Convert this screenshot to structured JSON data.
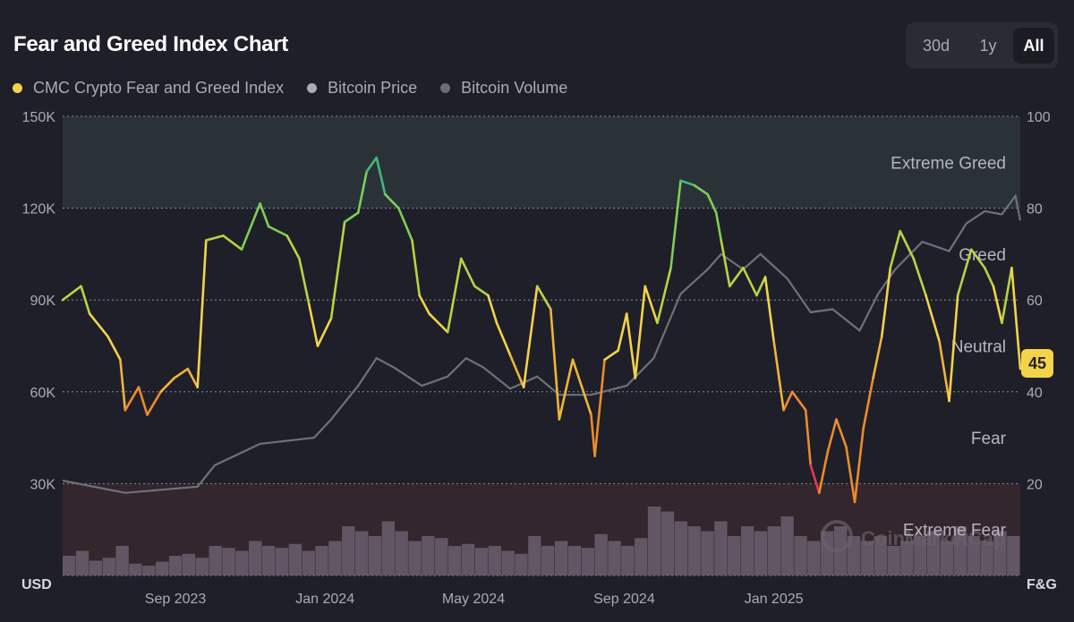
{
  "header": {
    "title": "Fear and Greed Index Chart"
  },
  "range_buttons": [
    {
      "label": "30d"
    },
    {
      "label": "1y"
    },
    {
      "label": "All",
      "active": true
    }
  ],
  "legend": [
    {
      "label": "CMC Crypto Fear and Greed Index",
      "color": "#f3d34a"
    },
    {
      "label": "Bitcoin Price",
      "color": "#a9abb5"
    },
    {
      "label": "Bitcoin Volume",
      "color": "#6b6c76"
    }
  ],
  "current_value": "45",
  "watermark": "CoinMarketCap",
  "chart_data": {
    "type": "line",
    "title": "Fear and Greed Index Chart",
    "x_range": [
      "2023-06-01",
      "2025-07-21"
    ],
    "x_ticks": [
      {
        "label": "Sep 2023",
        "date": "2023-09-01"
      },
      {
        "label": "Jan 2024",
        "date": "2024-01-01"
      },
      {
        "label": "May 2024",
        "date": "2024-05-01"
      },
      {
        "label": "Sep 2024",
        "date": "2024-09-01"
      },
      {
        "label": "Jan 2025",
        "date": "2025-01-01"
      }
    ],
    "left_axis": {
      "label": "USD",
      "range": [
        0,
        150000
      ],
      "ticks": [
        {
          "v": 30000,
          "label": "30K"
        },
        {
          "v": 60000,
          "label": "60K"
        },
        {
          "v": 90000,
          "label": "90K"
        },
        {
          "v": 120000,
          "label": "120K"
        },
        {
          "v": 150000,
          "label": "150K"
        }
      ]
    },
    "right_axis": {
      "label": "F&G",
      "range": [
        0,
        100
      ],
      "ticks": [
        {
          "v": 20,
          "label": "20"
        },
        {
          "v": 40,
          "label": "40"
        },
        {
          "v": 60,
          "label": "60"
        },
        {
          "v": 80,
          "label": "80"
        },
        {
          "v": 100,
          "label": "100"
        }
      ]
    },
    "zones": [
      {
        "label": "Extreme Greed",
        "from": 80,
        "to": 100,
        "color": "#2a3238"
      },
      {
        "label": "Greed",
        "from": 60,
        "to": 80
      },
      {
        "label": "Neutral",
        "from": 40,
        "to": 60
      },
      {
        "label": "Fear",
        "from": 20,
        "to": 40
      },
      {
        "label": "Extreme Fear",
        "from": 0,
        "to": 20,
        "color": "#33262c"
      }
    ],
    "series": [
      {
        "name": "CMC Crypto Fear and Greed Index",
        "axis": "right",
        "points": [
          [
            "2023-06-01",
            60
          ],
          [
            "2023-06-16",
            63
          ],
          [
            "2023-06-23",
            57
          ],
          [
            "2023-07-08",
            52
          ],
          [
            "2023-07-18",
            47
          ],
          [
            "2023-07-22",
            36
          ],
          [
            "2023-08-02",
            41
          ],
          [
            "2023-08-09",
            35
          ],
          [
            "2023-08-20",
            40
          ],
          [
            "2023-08-31",
            43
          ],
          [
            "2023-09-11",
            45
          ],
          [
            "2023-09-19",
            41
          ],
          [
            "2023-09-26",
            73
          ],
          [
            "2023-10-10",
            74
          ],
          [
            "2023-10-25",
            71
          ],
          [
            "2023-11-09",
            81
          ],
          [
            "2023-11-16",
            76
          ],
          [
            "2023-12-01",
            74
          ],
          [
            "2023-12-11",
            69
          ],
          [
            "2023-12-19",
            59
          ],
          [
            "2023-12-26",
            50
          ],
          [
            "2024-01-06",
            56
          ],
          [
            "2024-01-17",
            77
          ],
          [
            "2024-01-28",
            79
          ],
          [
            "2024-02-04",
            88
          ],
          [
            "2024-02-12",
            91
          ],
          [
            "2024-02-19",
            83
          ],
          [
            "2024-03-01",
            80
          ],
          [
            "2024-03-12",
            73
          ],
          [
            "2024-03-18",
            61
          ],
          [
            "2024-03-26",
            57
          ],
          [
            "2024-04-10",
            53
          ],
          [
            "2024-04-21",
            69
          ],
          [
            "2024-05-02",
            63
          ],
          [
            "2024-05-13",
            61
          ],
          [
            "2024-05-20",
            55
          ],
          [
            "2024-05-31",
            48
          ],
          [
            "2024-06-11",
            41
          ],
          [
            "2024-06-22",
            63
          ],
          [
            "2024-07-03",
            58
          ],
          [
            "2024-07-10",
            34
          ],
          [
            "2024-07-21",
            47
          ],
          [
            "2024-08-05",
            35
          ],
          [
            "2024-08-08",
            26
          ],
          [
            "2024-08-16",
            47
          ],
          [
            "2024-08-27",
            49
          ],
          [
            "2024-09-03",
            57
          ],
          [
            "2024-09-10",
            43
          ],
          [
            "2024-09-18",
            63
          ],
          [
            "2024-09-28",
            55
          ],
          [
            "2024-10-09",
            67
          ],
          [
            "2024-10-17",
            86
          ],
          [
            "2024-10-28",
            85
          ],
          [
            "2024-11-08",
            83
          ],
          [
            "2024-11-15",
            79
          ],
          [
            "2024-11-19",
            73
          ],
          [
            "2024-11-26",
            63
          ],
          [
            "2024-12-07",
            67
          ],
          [
            "2024-12-18",
            61
          ],
          [
            "2024-12-25",
            65
          ],
          [
            "2025-01-01",
            51
          ],
          [
            "2025-01-09",
            36
          ],
          [
            "2025-01-16",
            40
          ],
          [
            "2025-01-27",
            36
          ],
          [
            "2025-01-31",
            24
          ],
          [
            "2025-02-07",
            18
          ],
          [
            "2025-02-14",
            27
          ],
          [
            "2025-02-21",
            34
          ],
          [
            "2025-03-01",
            28
          ],
          [
            "2025-03-08",
            16
          ],
          [
            "2025-03-15",
            32
          ],
          [
            "2025-03-23",
            43
          ],
          [
            "2025-03-30",
            52
          ],
          [
            "2025-04-06",
            67
          ],
          [
            "2025-04-14",
            75
          ],
          [
            "2025-04-25",
            69
          ],
          [
            "2025-05-05",
            61
          ],
          [
            "2025-05-16",
            51
          ],
          [
            "2025-05-24",
            38
          ],
          [
            "2025-05-31",
            61
          ],
          [
            "2025-06-11",
            71
          ],
          [
            "2025-06-22",
            67
          ],
          [
            "2025-06-29",
            63
          ],
          [
            "2025-07-06",
            55
          ],
          [
            "2025-07-14",
            67
          ],
          [
            "2025-07-21",
            45
          ]
        ]
      },
      {
        "name": "Bitcoin Price",
        "axis": "left",
        "color": "#6e717a",
        "points": [
          [
            "2023-06-01",
            31000
          ],
          [
            "2023-07-22",
            27000
          ],
          [
            "2023-09-19",
            29000
          ],
          [
            "2023-10-03",
            36000
          ],
          [
            "2023-11-09",
            43000
          ],
          [
            "2023-12-23",
            45000
          ],
          [
            "2024-01-06",
            51000
          ],
          [
            "2024-01-28",
            62000
          ],
          [
            "2024-02-12",
            71000
          ],
          [
            "2024-02-26",
            68000
          ],
          [
            "2024-03-20",
            62000
          ],
          [
            "2024-04-10",
            65000
          ],
          [
            "2024-04-25",
            71000
          ],
          [
            "2024-05-09",
            68000
          ],
          [
            "2024-05-31",
            61000
          ],
          [
            "2024-06-22",
            65000
          ],
          [
            "2024-07-10",
            59000
          ],
          [
            "2024-08-05",
            59000
          ],
          [
            "2024-09-03",
            62000
          ],
          [
            "2024-09-25",
            71000
          ],
          [
            "2024-10-17",
            92000
          ],
          [
            "2024-11-08",
            100000
          ],
          [
            "2024-11-19",
            105000
          ],
          [
            "2024-12-07",
            100000
          ],
          [
            "2024-12-21",
            105000
          ],
          [
            "2025-01-12",
            97000
          ],
          [
            "2025-01-31",
            86000
          ],
          [
            "2025-02-18",
            87000
          ],
          [
            "2025-03-12",
            80000
          ],
          [
            "2025-03-27",
            92000
          ],
          [
            "2025-04-10",
            100000
          ],
          [
            "2025-05-02",
            109000
          ],
          [
            "2025-05-24",
            106000
          ],
          [
            "2025-06-07",
            115000
          ],
          [
            "2025-06-22",
            119000
          ],
          [
            "2025-07-06",
            118000
          ],
          [
            "2025-07-17",
            124000
          ],
          [
            "2025-07-21",
            116000
          ]
        ]
      }
    ],
    "volume": {
      "name": "Bitcoin Volume",
      "color": "#6b5f6e",
      "start": "2023-06-01",
      "end": "2025-07-21",
      "relative": [
        0.2,
        0.25,
        0.15,
        0.18,
        0.3,
        0.12,
        0.1,
        0.14,
        0.2,
        0.22,
        0.18,
        0.3,
        0.28,
        0.25,
        0.35,
        0.3,
        0.28,
        0.32,
        0.25,
        0.3,
        0.35,
        0.5,
        0.45,
        0.4,
        0.55,
        0.45,
        0.35,
        0.4,
        0.38,
        0.3,
        0.32,
        0.28,
        0.3,
        0.25,
        0.22,
        0.4,
        0.3,
        0.35,
        0.3,
        0.28,
        0.42,
        0.35,
        0.3,
        0.38,
        0.7,
        0.65,
        0.55,
        0.5,
        0.45,
        0.55,
        0.4,
        0.5,
        0.45,
        0.5,
        0.6,
        0.4,
        0.35,
        0.45,
        0.5,
        0.4,
        0.35,
        0.4,
        0.3,
        0.35,
        0.4,
        0.45,
        0.35,
        0.5,
        0.4,
        0.35,
        0.45,
        0.4
      ]
    }
  }
}
